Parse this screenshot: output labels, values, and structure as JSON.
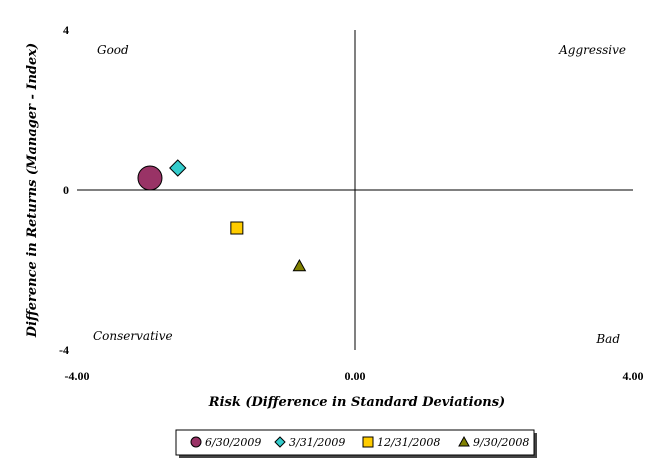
{
  "chart_data": {
    "type": "scatter",
    "xlabel": "Risk (Difference in Standard Deviations)",
    "ylabel": "Difference in Returns (Manager - Index)",
    "xlim": [
      -4,
      4
    ],
    "ylim": [
      -4,
      4
    ],
    "x_ticks": [
      "-4.00",
      "0.00",
      "4.00"
    ],
    "y_ticks": [
      "4",
      "0",
      "-4"
    ],
    "grid": false,
    "quadrants": {
      "top_left": "Good",
      "top_right": "Aggressive",
      "bottom_left": "Conservative",
      "bottom_right": "Bad"
    },
    "legend_position": "bottom",
    "series": [
      {
        "name": "6/30/2009",
        "marker": "circle",
        "color": "#993366",
        "size": "large",
        "x": -2.95,
        "y": 0.3
      },
      {
        "name": "3/31/2009",
        "marker": "diamond",
        "color": "#33CCCC",
        "size": "medium",
        "x": -2.55,
        "y": 0.55
      },
      {
        "name": "12/31/2008",
        "marker": "square",
        "color": "#FFCC00",
        "size": "small",
        "x": -1.7,
        "y": -0.95
      },
      {
        "name": "9/30/2008",
        "marker": "triangle",
        "color": "#808000",
        "size": "small",
        "x": -0.8,
        "y": -1.9
      }
    ]
  }
}
